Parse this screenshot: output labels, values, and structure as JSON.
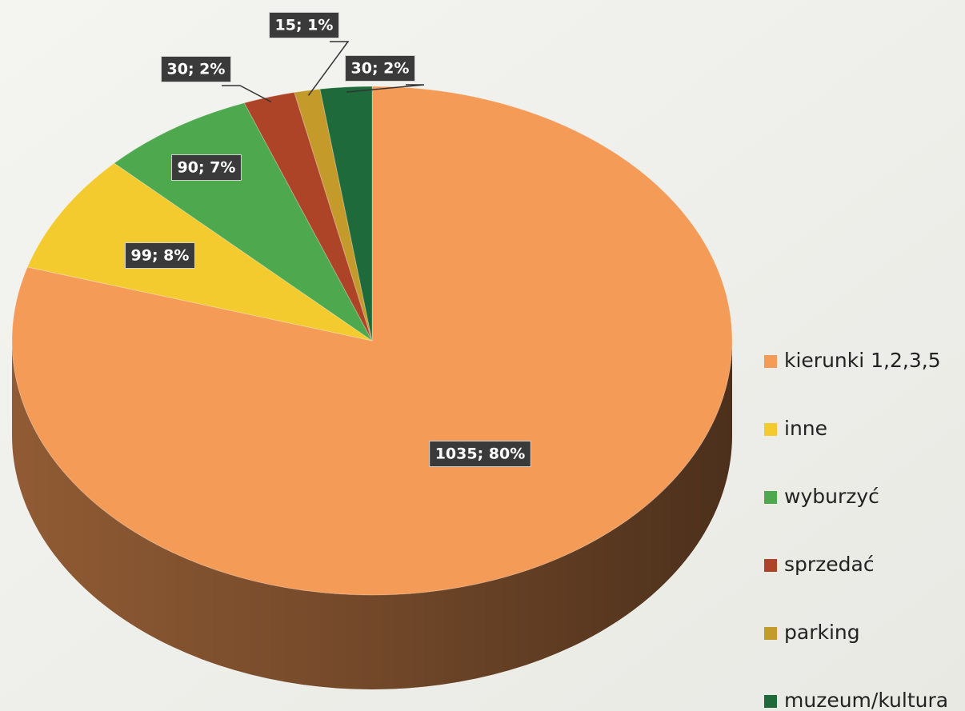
{
  "chart_data": {
    "type": "pie",
    "categories": [
      "kierunki 1,2,3,5",
      "inne",
      "wyburzyć",
      "sprzedać",
      "parking",
      "muzeum/kultura"
    ],
    "values": [
      1035,
      99,
      90,
      30,
      15,
      30
    ],
    "value_labels": [
      "1035; 80%",
      "99; 8%",
      "90; 7%",
      "30; 2%",
      "15; 1%",
      "30; 2%"
    ],
    "colors": [
      "#f59b58",
      "#f4cb2e",
      "#4ea84e",
      "#ad4428",
      "#c49a2a",
      "#1e6a3a"
    ],
    "legend": "right"
  }
}
